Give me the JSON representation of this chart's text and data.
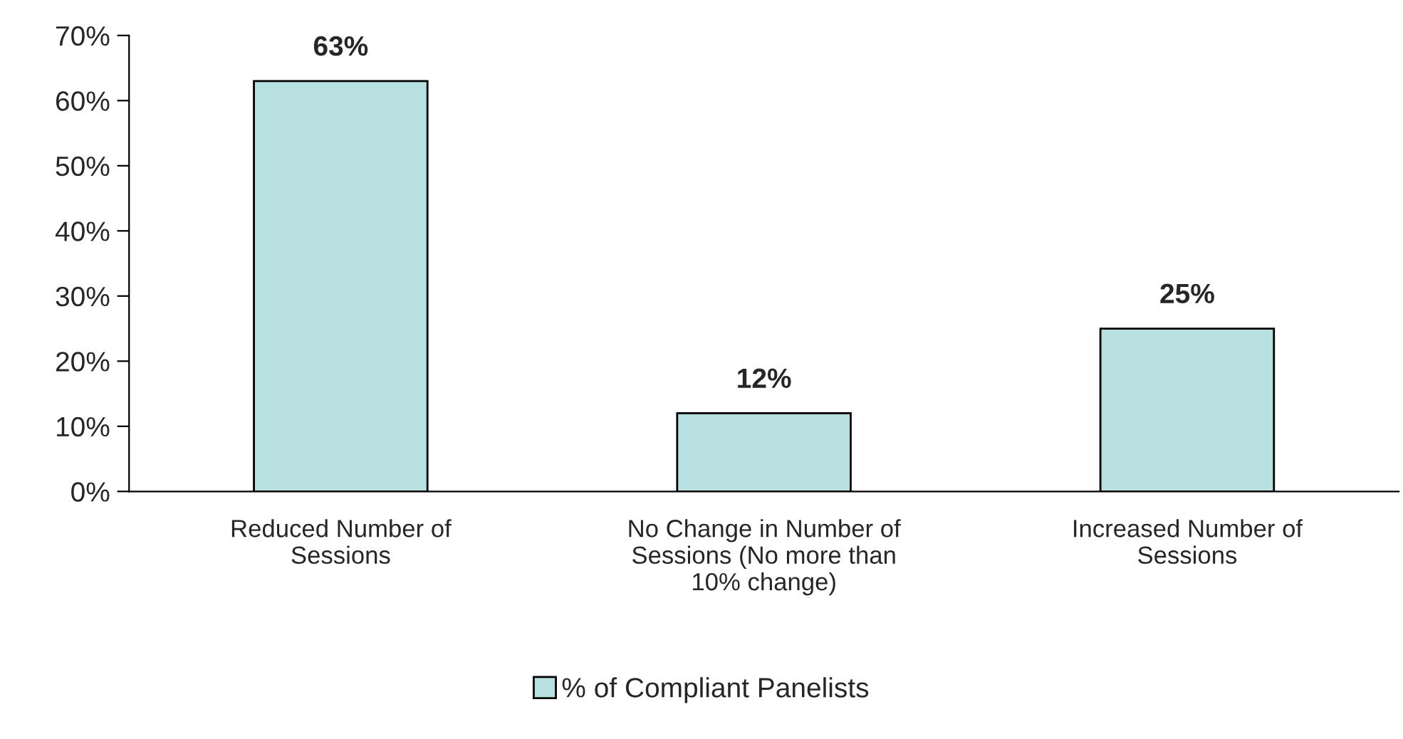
{
  "chart_data": {
    "type": "bar",
    "categories": [
      "Reduced Number of\nSessions",
      "No Change in Number of\nSessions (No more than\n10% change)",
      "Increased Number of\nSessions"
    ],
    "series": [
      {
        "name": "% of Compliant Panelists",
        "color": "#b9e0e0",
        "values": [
          63,
          12,
          25
        ],
        "value_labels": [
          "63%",
          "12%",
          "25%"
        ]
      }
    ],
    "ylim": [
      0,
      70
    ],
    "yticks": [
      {
        "value": 0,
        "label": "0%"
      },
      {
        "value": 10,
        "label": "10%"
      },
      {
        "value": 20,
        "label": "20%"
      },
      {
        "value": 30,
        "label": "30%"
      },
      {
        "value": 40,
        "label": "40%"
      },
      {
        "value": 50,
        "label": "50%"
      },
      {
        "value": 60,
        "label": "60%"
      },
      {
        "value": 70,
        "label": "70%"
      }
    ],
    "grid": false,
    "legend": "bottom"
  }
}
